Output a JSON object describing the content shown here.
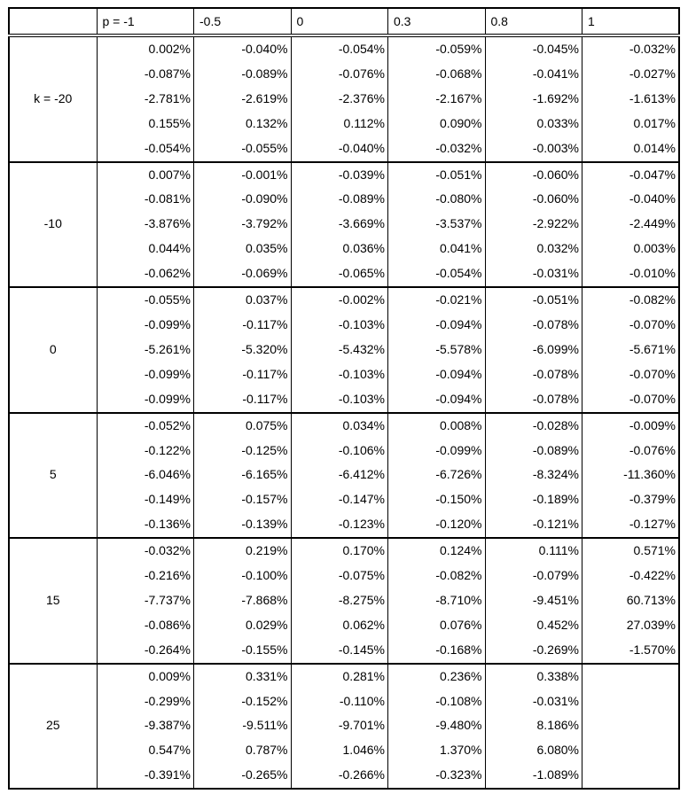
{
  "header": [
    "",
    "p = -1",
    "-0.5",
    "0",
    "0.3",
    "0.8",
    "1"
  ],
  "groups": [
    {
      "k": "k = -20",
      "rows": [
        [
          "0.002%",
          "-0.040%",
          "-0.054%",
          "-0.059%",
          "-0.045%",
          "-0.032%"
        ],
        [
          "-0.087%",
          "-0.089%",
          "-0.076%",
          "-0.068%",
          "-0.041%",
          "-0.027%"
        ],
        [
          "-2.781%",
          "-2.619%",
          "-2.376%",
          "-2.167%",
          "-1.692%",
          "-1.613%"
        ],
        [
          "0.155%",
          "0.132%",
          "0.112%",
          "0.090%",
          "0.033%",
          "0.017%"
        ],
        [
          "-0.054%",
          "-0.055%",
          "-0.040%",
          "-0.032%",
          "-0.003%",
          "0.014%"
        ]
      ]
    },
    {
      "k": "-10",
      "rows": [
        [
          "0.007%",
          "-0.001%",
          "-0.039%",
          "-0.051%",
          "-0.060%",
          "-0.047%"
        ],
        [
          "-0.081%",
          "-0.090%",
          "-0.089%",
          "-0.080%",
          "-0.060%",
          "-0.040%"
        ],
        [
          "-3.876%",
          "-3.792%",
          "-3.669%",
          "-3.537%",
          "-2.922%",
          "-2.449%"
        ],
        [
          "0.044%",
          "0.035%",
          "0.036%",
          "0.041%",
          "0.032%",
          "0.003%"
        ],
        [
          "-0.062%",
          "-0.069%",
          "-0.065%",
          "-0.054%",
          "-0.031%",
          "-0.010%"
        ]
      ]
    },
    {
      "k": "0",
      "rows": [
        [
          "-0.055%",
          "0.037%",
          "-0.002%",
          "-0.021%",
          "-0.051%",
          "-0.082%"
        ],
        [
          "-0.099%",
          "-0.117%",
          "-0.103%",
          "-0.094%",
          "-0.078%",
          "-0.070%"
        ],
        [
          "-5.261%",
          "-5.320%",
          "-5.432%",
          "-5.578%",
          "-6.099%",
          "-5.671%"
        ],
        [
          "-0.099%",
          "-0.117%",
          "-0.103%",
          "-0.094%",
          "-0.078%",
          "-0.070%"
        ],
        [
          "-0.099%",
          "-0.117%",
          "-0.103%",
          "-0.094%",
          "-0.078%",
          "-0.070%"
        ]
      ]
    },
    {
      "k": "5",
      "rows": [
        [
          "-0.052%",
          "0.075%",
          "0.034%",
          "0.008%",
          "-0.028%",
          "-0.009%"
        ],
        [
          "-0.122%",
          "-0.125%",
          "-0.106%",
          "-0.099%",
          "-0.089%",
          "-0.076%"
        ],
        [
          "-6.046%",
          "-6.165%",
          "-6.412%",
          "-6.726%",
          "-8.324%",
          "-11.360%"
        ],
        [
          "-0.149%",
          "-0.157%",
          "-0.147%",
          "-0.150%",
          "-0.189%",
          "-0.379%"
        ],
        [
          "-0.136%",
          "-0.139%",
          "-0.123%",
          "-0.120%",
          "-0.121%",
          "-0.127%"
        ]
      ]
    },
    {
      "k": "15",
      "rows": [
        [
          "-0.032%",
          "0.219%",
          "0.170%",
          "0.124%",
          "0.111%",
          "0.571%"
        ],
        [
          "-0.216%",
          "-0.100%",
          "-0.075%",
          "-0.082%",
          "-0.079%",
          "-0.422%"
        ],
        [
          "-7.737%",
          "-7.868%",
          "-8.275%",
          "-8.710%",
          "-9.451%",
          "60.713%"
        ],
        [
          "-0.086%",
          "0.029%",
          "0.062%",
          "0.076%",
          "0.452%",
          "27.039%"
        ],
        [
          "-0.264%",
          "-0.155%",
          "-0.145%",
          "-0.168%",
          "-0.269%",
          "-1.570%"
        ]
      ]
    },
    {
      "k": "25",
      "rows": [
        [
          "0.009%",
          "0.331%",
          "0.281%",
          "0.236%",
          "0.338%",
          ""
        ],
        [
          "-0.299%",
          "-0.152%",
          "-0.110%",
          "-0.108%",
          "-0.031%",
          ""
        ],
        [
          "-9.387%",
          "-9.511%",
          "-9.701%",
          "-9.480%",
          "8.186%",
          ""
        ],
        [
          "0.547%",
          "0.787%",
          "1.046%",
          "1.370%",
          "6.080%",
          ""
        ],
        [
          "-0.391%",
          "-0.265%",
          "-0.266%",
          "-0.323%",
          "-1.089%",
          ""
        ]
      ]
    }
  ]
}
